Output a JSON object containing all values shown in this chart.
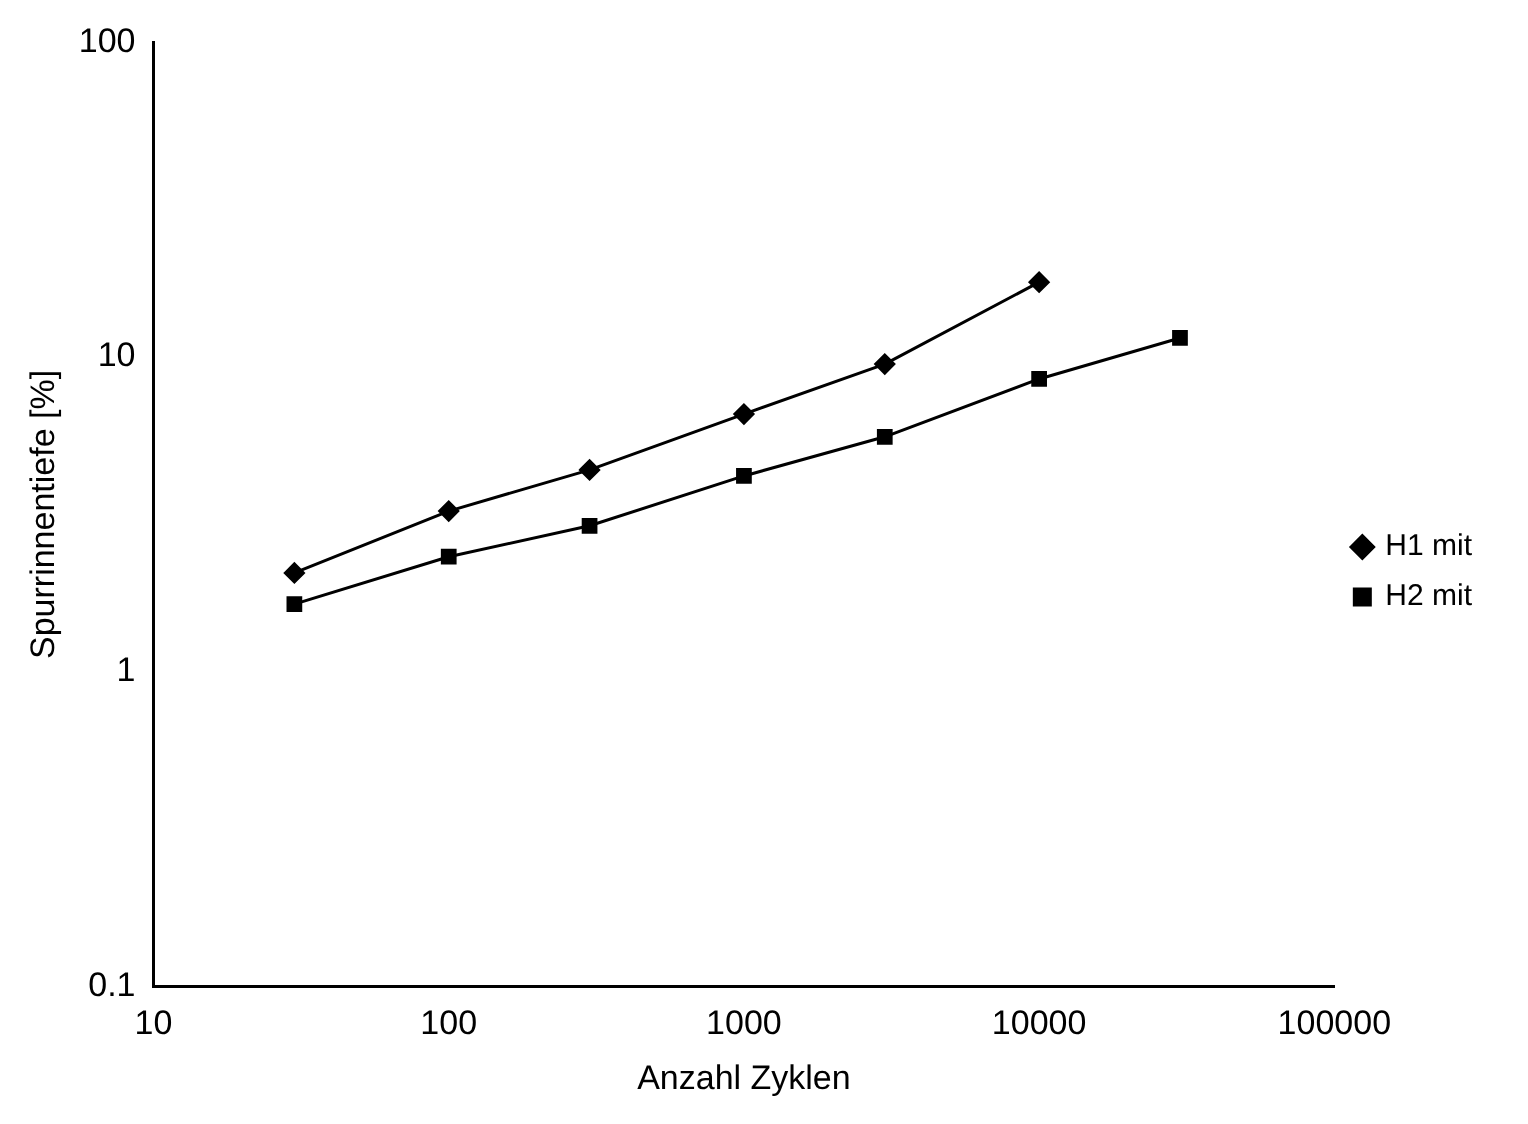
{
  "chart_data": {
    "type": "line",
    "xlabel": "Anzahl Zyklen",
    "ylabel": "Spurrinnentiefe [%]",
    "log": "xy",
    "xlim": [
      10,
      100000
    ],
    "xticks": [
      10,
      100,
      1000,
      10000,
      100000
    ],
    "ylim": [
      0.1,
      100
    ],
    "yticks": [
      0.1,
      1,
      10,
      100
    ],
    "grid": false,
    "legend": "right",
    "line_style": "solid",
    "series": [
      {
        "name": "H1 mit",
        "color": "#000000",
        "marker": "diamond",
        "x": [
          30,
          100,
          300,
          1000,
          3000,
          10000
        ],
        "values": [
          2.06,
          3.24,
          4.38,
          6.59,
          9.5,
          17.3
        ]
      },
      {
        "name": "H2 mit",
        "color": "#000000",
        "marker": "square",
        "x": [
          30,
          100,
          300,
          1000,
          3000,
          10000,
          30000
        ],
        "values": [
          1.64,
          2.32,
          2.91,
          4.19,
          5.58,
          8.52,
          11.5
        ]
      }
    ]
  }
}
